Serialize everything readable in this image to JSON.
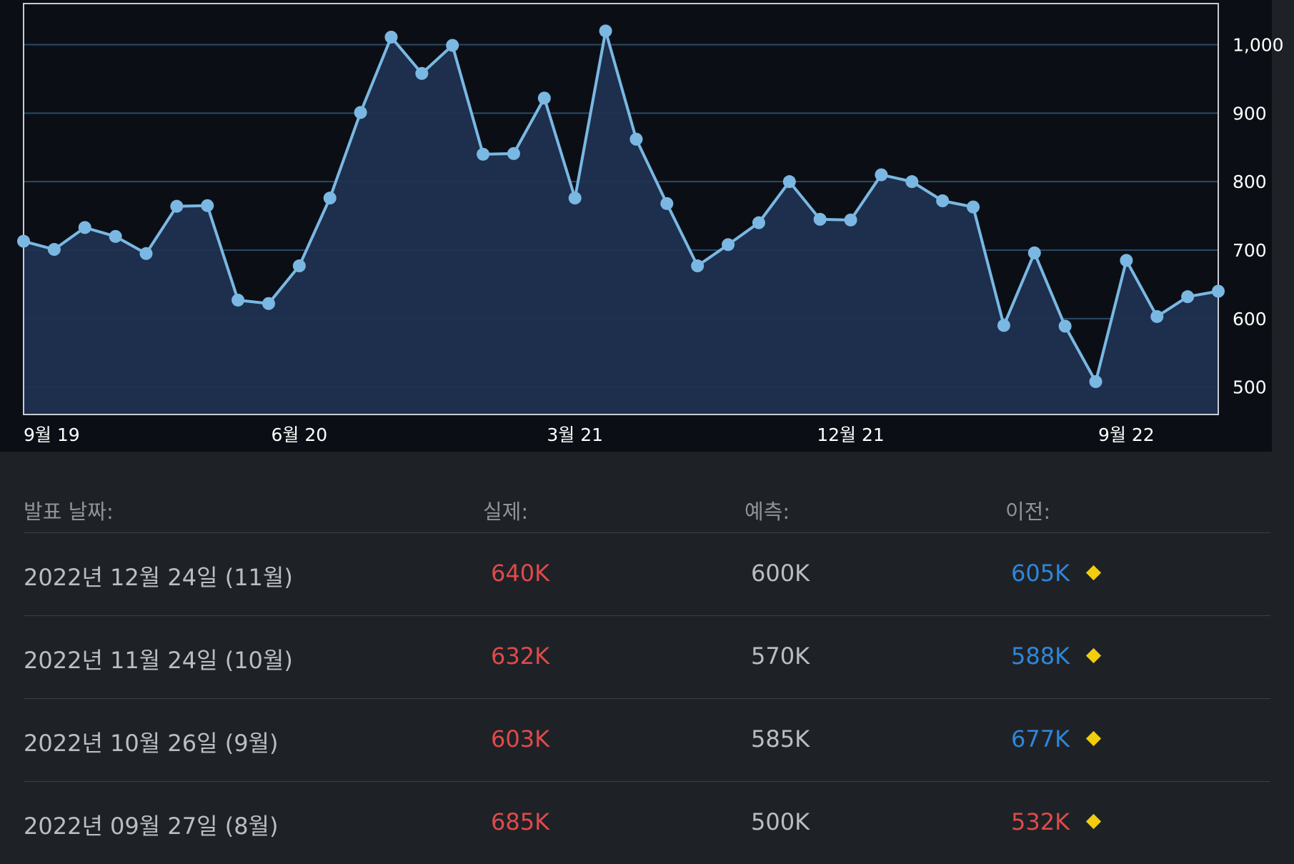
{
  "colors": {
    "background": "#1e2227",
    "chart_background": "#0b0f15",
    "line": "#7ab8e3",
    "area_fill": "#1f3150",
    "grid": "#2a4a68",
    "axis_text": "#ffffff",
    "header_text": "#8e949b",
    "body_text": "#b9bec4",
    "up_red": "#e04a4a",
    "prev_blue": "#2f86d9",
    "diamond_yellow": "#f2cc0f"
  },
  "chart_data": {
    "type": "area",
    "title": "",
    "xlabel": "",
    "ylabel": "",
    "ylim": [
      460,
      1060
    ],
    "y_ticks": [
      500,
      600,
      700,
      800,
      900,
      1000
    ],
    "y_tick_labels": [
      "500",
      "600",
      "700",
      "800",
      "900",
      "1,000"
    ],
    "x_tick_labels": [
      {
        "label": "9월 19",
        "index": 0
      },
      {
        "label": "6월 20",
        "index": 9
      },
      {
        "label": "3월 21",
        "index": 18
      },
      {
        "label": "12월 21",
        "index": 27
      },
      {
        "label": "9월 22",
        "index": 36
      }
    ],
    "grid": true,
    "legend": "none",
    "series": [
      {
        "values": [
          713,
          701,
          733,
          720,
          695,
          764,
          765,
          627,
          622,
          677,
          776,
          901,
          1011,
          958,
          999,
          840,
          841,
          922,
          776,
          1020,
          862,
          768,
          677,
          708,
          740,
          800,
          745,
          744,
          810,
          800,
          772,
          763,
          590,
          696,
          589,
          508,
          685,
          603,
          632,
          640
        ]
      }
    ]
  },
  "table": {
    "headers": {
      "date": "발표 날짜:",
      "actual": "실제:",
      "forecast": "예측:",
      "previous": "이전:"
    },
    "rows": [
      {
        "date": "2022년 12월 24일 (11월)",
        "actual": "640K",
        "forecast": "600K",
        "previous": "605K",
        "actual_color": "#e04a4a",
        "previous_color": "#2f86d9"
      },
      {
        "date": "2022년 11월 24일 (10월)",
        "actual": "632K",
        "forecast": "570K",
        "previous": "588K",
        "actual_color": "#e04a4a",
        "previous_color": "#2f86d9"
      },
      {
        "date": "2022년 10월 26일 (9월)",
        "actual": "603K",
        "forecast": "585K",
        "previous": "677K",
        "actual_color": "#e04a4a",
        "previous_color": "#2f86d9"
      },
      {
        "date": "2022년 09월 27일 (8월)",
        "actual": "685K",
        "forecast": "500K",
        "previous": "532K",
        "actual_color": "#e04a4a",
        "previous_color": "#e04a4a"
      }
    ]
  }
}
